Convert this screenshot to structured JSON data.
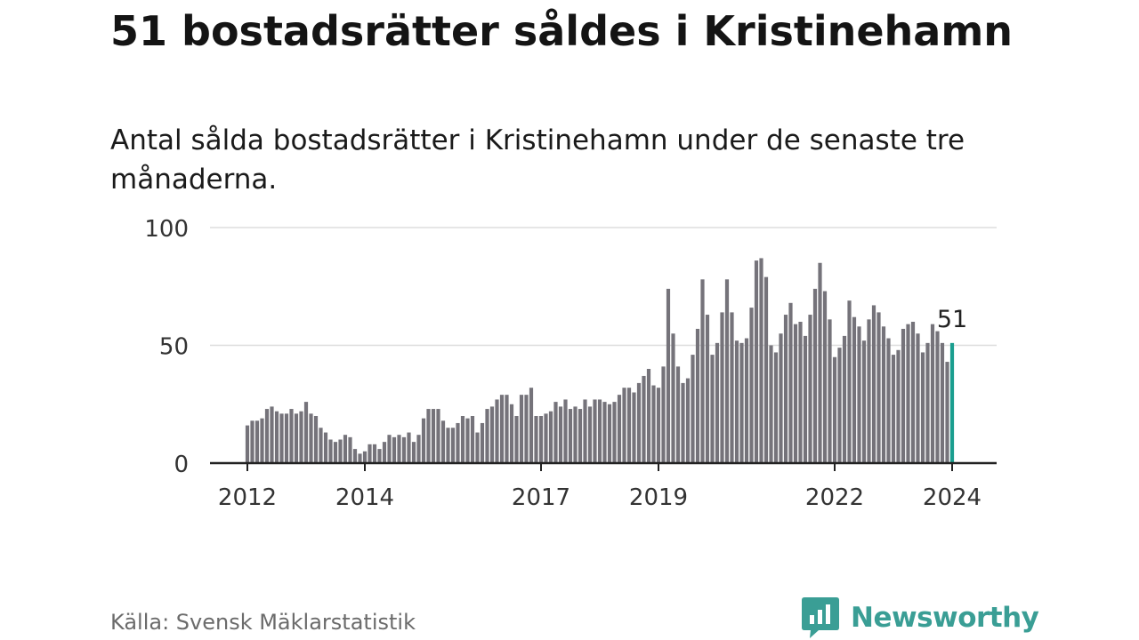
{
  "header": {
    "title": "51 bostadsrätter såldes i Kristinehamn",
    "subtitle": "Antal sålda bostadsrätter i Kristinehamn under de senaste tre månaderna."
  },
  "footer": {
    "source": "Källa: Svensk Mäklarstatistik",
    "brand": "Newsworthy"
  },
  "colors": {
    "bar": "#75737a",
    "highlight": "#1a9e8f",
    "grid": "#dddddd",
    "axis": "#222222",
    "brand": "#3a9e95"
  },
  "chart_data": {
    "type": "bar",
    "title": "51 bostadsrätter såldes i Kristinehamn",
    "xlabel": "",
    "ylabel": "",
    "ylim": [
      0,
      100
    ],
    "yticks": [
      0,
      50,
      100
    ],
    "xticks": [
      {
        "label": "2012",
        "index": 0
      },
      {
        "label": "2014",
        "index": 24
      },
      {
        "label": "2017",
        "index": 60
      },
      {
        "label": "2019",
        "index": 84
      },
      {
        "label": "2022",
        "index": 120
      },
      {
        "label": "2024",
        "index": 144
      }
    ],
    "start": "2012-01",
    "values": [
      16,
      18,
      18,
      19,
      23,
      24,
      22,
      21,
      21,
      23,
      21,
      22,
      26,
      21,
      20,
      15,
      13,
      10,
      9,
      10,
      12,
      11,
      6,
      4,
      5,
      8,
      8,
      6,
      9,
      12,
      11,
      12,
      11,
      13,
      9,
      12,
      19,
      23,
      23,
      23,
      18,
      15,
      15,
      17,
      20,
      19,
      20,
      13,
      17,
      23,
      24,
      27,
      29,
      29,
      25,
      20,
      29,
      29,
      32,
      20,
      20,
      21,
      22,
      26,
      24,
      27,
      23,
      24,
      23,
      27,
      24,
      27,
      27,
      26,
      25,
      26,
      29,
      32,
      32,
      30,
      34,
      37,
      40,
      33,
      32,
      41,
      74,
      55,
      41,
      34,
      36,
      46,
      57,
      78,
      63,
      46,
      51,
      64,
      78,
      64,
      52,
      51,
      53,
      66,
      86,
      87,
      79,
      50,
      47,
      55,
      63,
      68,
      59,
      60,
      54,
      63,
      74,
      85,
      73,
      61,
      45,
      49,
      54,
      69,
      62,
      58,
      52,
      61,
      67,
      64,
      58,
      53,
      46,
      48,
      57,
      59,
      60,
      55,
      47,
      51,
      59,
      56,
      51,
      43,
      51
    ],
    "highlight_index": 144,
    "highlight_label": "51"
  }
}
